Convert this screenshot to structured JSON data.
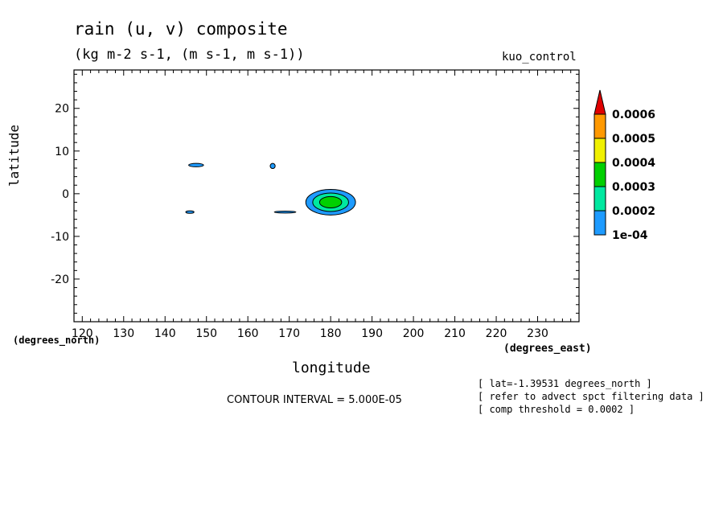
{
  "title": "rain (u, v) composite",
  "subtitle": "(kg m-2 s-1, (m s-1, m s-1))",
  "dataset": "kuo_control",
  "contour_interval": "CONTOUR INTERVAL = 5.000E-05",
  "notes": [
    "[ lat=-1.39531 degrees_north ]",
    "[ refer to advect spct filtering data ]",
    "[ comp threshold = 0.0002 ]"
  ],
  "chart_data": {
    "type": "heatmap",
    "title": "rain (u, v) composite",
    "subtitle": "(kg m-2 s-1, (m s-1, m s-1))",
    "xlabel": "longitude",
    "ylabel": "latitude",
    "x_units": "(degrees_east)",
    "y_units": "(degrees_north)",
    "xlim": [
      118,
      240
    ],
    "ylim": [
      -30,
      29
    ],
    "x_ticks": [
      120,
      130,
      140,
      150,
      160,
      170,
      180,
      190,
      200,
      210,
      220,
      230
    ],
    "y_ticks": [
      20,
      10,
      0,
      -10,
      -20
    ],
    "colorbar": {
      "levels": [
        0.0001,
        0.0002,
        0.0003,
        0.0004,
        0.0005,
        0.0006
      ],
      "labels": [
        "1e-04",
        "0.0002",
        "0.0003",
        "0.0004",
        "0.0005",
        "0.0006"
      ],
      "colors": [
        "#1e9bff",
        "#00e8a0",
        "#00d000",
        "#f0f000",
        "#ff9900",
        "#e00000"
      ]
    },
    "features": [
      {
        "name": "main_blob",
        "lon": 180,
        "lat": -2,
        "lon_halfwidth": 6,
        "lat_halfwidth": 3,
        "max_level": 0.0003
      },
      {
        "name": "small_147_7",
        "lon": 147.5,
        "lat": 6.7,
        "lon_halfwidth": 1.8,
        "lat_halfwidth": 0.4,
        "max_level": 0.0001
      },
      {
        "name": "small_166_7",
        "lon": 166,
        "lat": 6.5,
        "lon_halfwidth": 0.6,
        "lat_halfwidth": 0.6,
        "max_level": 0.0001
      },
      {
        "name": "small_146_m4",
        "lon": 146,
        "lat": -4.3,
        "lon_halfwidth": 1.0,
        "lat_halfwidth": 0.3,
        "max_level": 0.0001
      },
      {
        "name": "line_169_m4",
        "lon": 169,
        "lat": -4.3,
        "lon_halfwidth": 2.6,
        "lat_halfwidth": 0.15,
        "max_level": 0.0001
      }
    ]
  }
}
